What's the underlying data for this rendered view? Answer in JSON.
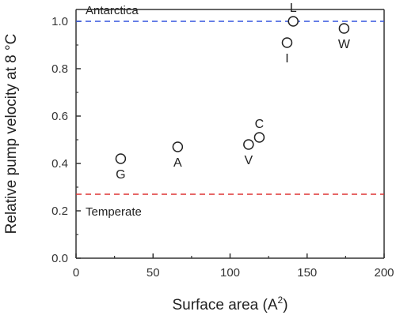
{
  "chart_data": {
    "type": "scatter",
    "xlabel": "Surface area (A",
    "xlabel_superscript": "2",
    "xlabel_suffix": ")",
    "ylabel": "Relative pump velocity at 8 °C",
    "xlim": [
      0,
      200
    ],
    "ylim": [
      0.0,
      1.05
    ],
    "x_ticks": [
      "0",
      "50",
      "100",
      "150",
      "200"
    ],
    "y_ticks": [
      "0.0",
      "0.2",
      "0.4",
      "0.6",
      "0.8",
      "1.0"
    ],
    "grid": false,
    "points": [
      {
        "label": "G",
        "x": 29,
        "y": 0.42,
        "label_pos": "below"
      },
      {
        "label": "A",
        "x": 66,
        "y": 0.47,
        "label_pos": "below"
      },
      {
        "label": "V",
        "x": 112,
        "y": 0.48,
        "label_pos": "below"
      },
      {
        "label": "C",
        "x": 119,
        "y": 0.51,
        "label_pos": "above"
      },
      {
        "label": "I",
        "x": 137,
        "y": 0.91,
        "label_pos": "below"
      },
      {
        "label": "L",
        "x": 141,
        "y": 1.0,
        "label_pos": "above"
      },
      {
        "label": "W",
        "x": 174,
        "y": 0.97,
        "label_pos": "below"
      }
    ],
    "reference_lines": [
      {
        "label": "Antarctica",
        "y": 1.0,
        "color": "#3355dd",
        "style": "dashed",
        "label_pos": "above"
      },
      {
        "label": "Temperate",
        "y": 0.27,
        "color": "#dd3333",
        "style": "dashed",
        "label_pos": "below"
      }
    ]
  }
}
